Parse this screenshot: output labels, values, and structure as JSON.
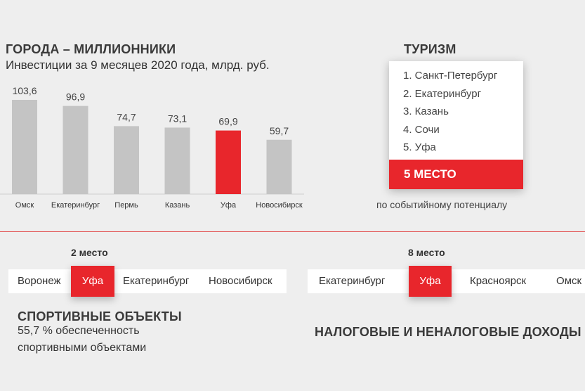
{
  "left_top": {
    "title": "ГОРОДА – МИЛЛИОННИКИ",
    "subtitle": "Инвестиции за 9 месяцев 2020 года, млрд. руб."
  },
  "chart_data": {
    "type": "bar",
    "title": "ГОРОДА – МИЛЛИОННИКИ",
    "subtitle": "Инвестиции за 9 месяцев 2020 года, млрд. руб.",
    "categories": [
      "Омск",
      "Екатеринбург",
      "Пермь",
      "Казань",
      "Уфа",
      "Новосибирск"
    ],
    "values": [
      103.6,
      96.9,
      74.7,
      73.1,
      69.9,
      59.7
    ],
    "value_labels": [
      "103,6",
      "96,9",
      "74,7",
      "73,1",
      "69,9",
      "59,7"
    ],
    "highlight": "Уфа",
    "ylim": [
      0,
      103.6
    ],
    "grid": false,
    "colors": {
      "bar": "#c4c4c4",
      "highlight": "#e8262c",
      "axis": "#cfcfcf"
    }
  },
  "tourism": {
    "title": "ТУРИЗМ",
    "items": [
      "1. Санкт-Петербург",
      "2. Екатеринбург",
      "3. Казань",
      "4. Сочи",
      "5. Уфа"
    ],
    "place": "5 МЕСТО",
    "caption": "по событийному потенциалу"
  },
  "sports": {
    "place": "2 место",
    "cities": [
      "Воронеж",
      "Уфа",
      "Екатеринбург",
      "Новосибирск"
    ],
    "title": "СПОРТИВНЫЕ ОБЪЕКТЫ",
    "text_line1": "55,7 % обеспеченность",
    "text_line2": "спортивными объектами"
  },
  "tax": {
    "place": "8 место",
    "cities": [
      "Екатеринбург",
      "Уфа",
      "Красноярск",
      "Омск"
    ],
    "title": "НАЛОГОВЫЕ И НЕНАЛОГОВЫЕ ДОХОДЫ"
  },
  "colors": {
    "accent": "#e8262c",
    "background": "#eeeeee",
    "divider": "#e24a4a"
  }
}
